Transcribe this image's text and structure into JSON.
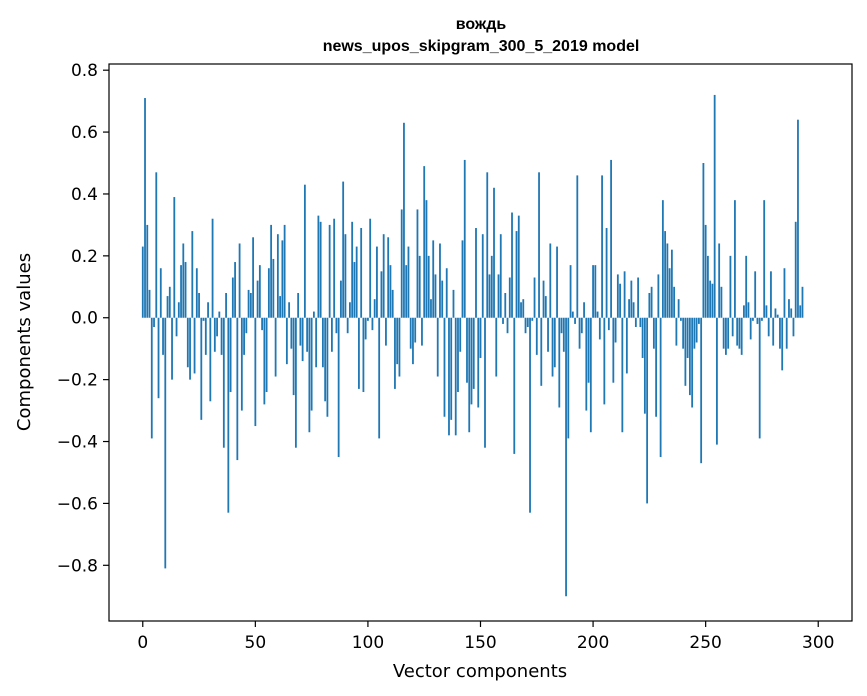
{
  "chart_data": {
    "type": "bar",
    "title": "вождь",
    "subtitle": "news_upos_skipgram_300_5_2019 model",
    "xlabel": "Vector components",
    "ylabel": "Components values",
    "xlim": [
      -15,
      315
    ],
    "ylim": [
      -0.98,
      0.82
    ],
    "xticks": [
      0,
      50,
      100,
      150,
      200,
      250,
      300
    ],
    "xtick_labels": [
      "0",
      "50",
      "100",
      "150",
      "200",
      "250",
      "300"
    ],
    "yticks": [
      -0.8,
      -0.6,
      -0.4,
      -0.2,
      0.0,
      0.2,
      0.4,
      0.6,
      0.8
    ],
    "ytick_labels": [
      "−0.8",
      "−0.6",
      "−0.4",
      "−0.2",
      "0.0",
      "0.2",
      "0.4",
      "0.6",
      "0.8"
    ],
    "bar_color": "#1f77b4",
    "grid": false,
    "values": [
      0.23,
      0.71,
      0.3,
      0.09,
      -0.39,
      -0.03,
      0.47,
      -0.26,
      0.16,
      -0.12,
      -0.81,
      0.07,
      0.1,
      -0.2,
      0.39,
      -0.06,
      0.05,
      0.17,
      0.24,
      0.18,
      -0.16,
      -0.2,
      0.28,
      -0.18,
      0.16,
      0.08,
      -0.33,
      -0.01,
      -0.12,
      0.05,
      -0.27,
      0.32,
      -0.11,
      -0.06,
      0.02,
      -0.12,
      -0.42,
      0.08,
      -0.63,
      -0.24,
      0.13,
      0.18,
      -0.46,
      0.24,
      -0.3,
      -0.12,
      -0.05,
      0.09,
      0.08,
      0.26,
      -0.35,
      0.12,
      0.17,
      -0.04,
      -0.28,
      -0.24,
      0.16,
      0.3,
      0.19,
      -0.19,
      0.27,
      0.07,
      0.25,
      0.3,
      -0.15,
      0.05,
      -0.1,
      -0.25,
      -0.42,
      0.08,
      -0.09,
      -0.14,
      0.43,
      -0.11,
      -0.37,
      -0.3,
      0.02,
      -0.16,
      0.33,
      0.31,
      -0.16,
      -0.27,
      -0.32,
      0.3,
      -0.11,
      0.32,
      -0.05,
      -0.45,
      0.12,
      0.44,
      0.27,
      -0.05,
      0.05,
      0.31,
      0.18,
      0.23,
      -0.23,
      0.29,
      -0.24,
      -0.07,
      -0.01,
      0.32,
      -0.04,
      0.06,
      0.23,
      -0.39,
      0.15,
      0.27,
      -0.09,
      0.26,
      0.17,
      0.09,
      -0.23,
      -0.15,
      -0.19,
      0.35,
      0.63,
      0.17,
      0.23,
      -0.1,
      -0.15,
      -0.08,
      0.35,
      0.2,
      -0.09,
      0.49,
      0.38,
      0.2,
      0.06,
      0.25,
      0.14,
      -0.19,
      0.24,
      0.12,
      -0.32,
      0.16,
      -0.38,
      -0.33,
      0.09,
      -0.38,
      -0.24,
      -0.11,
      0.25,
      0.51,
      -0.21,
      -0.37,
      -0.28,
      -0.23,
      0.29,
      -0.29,
      -0.13,
      0.27,
      -0.42,
      0.47,
      0.14,
      0.2,
      0.42,
      -0.19,
      0.14,
      0.27,
      -0.02,
      0.08,
      -0.05,
      0.13,
      0.34,
      -0.44,
      0.28,
      0.33,
      0.05,
      0.06,
      -0.05,
      -0.03,
      -0.63,
      -0.01,
      0.13,
      -0.12,
      0.47,
      -0.22,
      0.12,
      0.07,
      -0.11,
      0.24,
      -0.19,
      -0.16,
      0.23,
      -0.29,
      -0.05,
      -0.11,
      -0.9,
      -0.39,
      0.17,
      0.02,
      -0.02,
      0.46,
      -0.1,
      -0.05,
      0.05,
      -0.3,
      -0.21,
      -0.37,
      0.17,
      0.17,
      0.02,
      -0.07,
      0.46,
      -0.28,
      0.29,
      -0.04,
      0.51,
      -0.21,
      -0.08,
      0.14,
      0.11,
      -0.37,
      0.15,
      -0.18,
      0.06,
      0.12,
      0.05,
      -0.03,
      0.13,
      -0.03,
      -0.13,
      -0.31,
      -0.6,
      0.08,
      0.1,
      -0.1,
      -0.32,
      0.14,
      -0.45,
      0.38,
      0.28,
      0.24,
      0.16,
      0.22,
      0.1,
      -0.09,
      0.06,
      -0.01,
      -0.1,
      -0.22,
      -0.13,
      -0.25,
      -0.29,
      -0.1,
      -0.08,
      -0.02,
      -0.47,
      0.5,
      0.3,
      0.2,
      0.12,
      0.11,
      0.72,
      -0.41,
      0.24,
      0.1,
      -0.1,
      -0.12,
      -0.1,
      0.2,
      -0.06,
      0.38,
      -0.09,
      -0.1,
      -0.12,
      0.04,
      0.2,
      0.05,
      -0.07,
      -0.01,
      0.15,
      -0.02,
      -0.39,
      -0.01,
      0.38,
      0.04,
      -0.06,
      0.15,
      -0.09,
      0.03,
      0.01,
      -0.1,
      -0.17,
      0.16,
      -0.1,
      0.06,
      0.03,
      -0.06,
      0.31,
      0.64,
      0.04,
      0.1
    ]
  }
}
